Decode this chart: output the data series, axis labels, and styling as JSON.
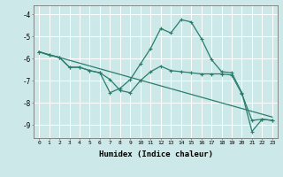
{
  "xlabel": "Humidex (Indice chaleur)",
  "background_color": "#cce8e8",
  "grid_color": "#ffffff",
  "line_color": "#2a7d6c",
  "xlim": [
    -0.5,
    23.5
  ],
  "ylim": [
    -9.6,
    -3.6
  ],
  "yticks": [
    -9,
    -8,
    -7,
    -6,
    -5,
    -4
  ],
  "xticks": [
    0,
    1,
    2,
    3,
    4,
    5,
    6,
    7,
    8,
    9,
    10,
    11,
    12,
    13,
    14,
    15,
    16,
    17,
    18,
    19,
    20,
    21,
    22,
    23
  ],
  "series1": [
    [
      0,
      -5.7
    ],
    [
      23,
      -8.65
    ]
  ],
  "series2": [
    [
      0,
      -5.7
    ],
    [
      1,
      -5.85
    ],
    [
      2,
      -5.95
    ],
    [
      3,
      -6.4
    ],
    [
      4,
      -6.4
    ],
    [
      5,
      -6.55
    ],
    [
      6,
      -6.65
    ],
    [
      7,
      -7.55
    ],
    [
      8,
      -7.35
    ],
    [
      9,
      -6.95
    ],
    [
      10,
      -6.25
    ],
    [
      11,
      -5.55
    ],
    [
      12,
      -4.65
    ],
    [
      13,
      -4.85
    ],
    [
      14,
      -4.25
    ],
    [
      15,
      -4.35
    ],
    [
      16,
      -5.1
    ],
    [
      17,
      -6.05
    ],
    [
      18,
      -6.6
    ],
    [
      19,
      -6.65
    ],
    [
      20,
      -7.55
    ],
    [
      21,
      -9.3
    ],
    [
      22,
      -8.75
    ],
    [
      23,
      -8.8
    ]
  ],
  "series3": [
    [
      0,
      -5.7
    ],
    [
      1,
      -5.85
    ],
    [
      2,
      -5.95
    ],
    [
      3,
      -6.4
    ],
    [
      4,
      -6.4
    ],
    [
      5,
      -6.55
    ],
    [
      6,
      -6.65
    ],
    [
      7,
      -6.95
    ],
    [
      8,
      -7.45
    ],
    [
      9,
      -7.55
    ],
    [
      10,
      -7.0
    ],
    [
      11,
      -6.6
    ],
    [
      12,
      -6.35
    ],
    [
      13,
      -6.55
    ],
    [
      14,
      -6.6
    ],
    [
      15,
      -6.65
    ],
    [
      16,
      -6.7
    ],
    [
      17,
      -6.7
    ],
    [
      18,
      -6.7
    ],
    [
      19,
      -6.75
    ],
    [
      20,
      -7.6
    ],
    [
      21,
      -8.8
    ],
    [
      22,
      -8.75
    ],
    [
      23,
      -8.8
    ]
  ]
}
